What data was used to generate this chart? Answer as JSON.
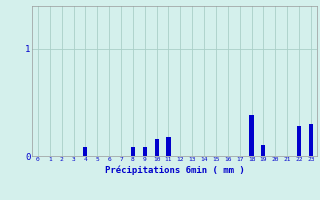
{
  "title": "",
  "xlabel": "Précipitations 6min ( mm )",
  "ylabel": "",
  "background_color": "#d4f0ec",
  "bar_color": "#0000cc",
  "grid_color": "#aacfc8",
  "axis_color": "#999999",
  "text_color": "#0000cc",
  "ylim": [
    0,
    1.4
  ],
  "yticks": [
    0,
    1
  ],
  "xlim": [
    -0.5,
    23.5
  ],
  "categories": [
    0,
    1,
    2,
    3,
    4,
    5,
    6,
    7,
    8,
    9,
    10,
    11,
    12,
    13,
    14,
    15,
    16,
    17,
    18,
    19,
    20,
    21,
    22,
    23
  ],
  "values": [
    0,
    0,
    0,
    0,
    0.08,
    0,
    0,
    0,
    0.08,
    0.08,
    0.16,
    0.18,
    0,
    0,
    0,
    0,
    0,
    0,
    0.38,
    0.1,
    0,
    0,
    0.28,
    0.3
  ],
  "figsize": [
    3.2,
    2.0
  ],
  "dpi": 100
}
